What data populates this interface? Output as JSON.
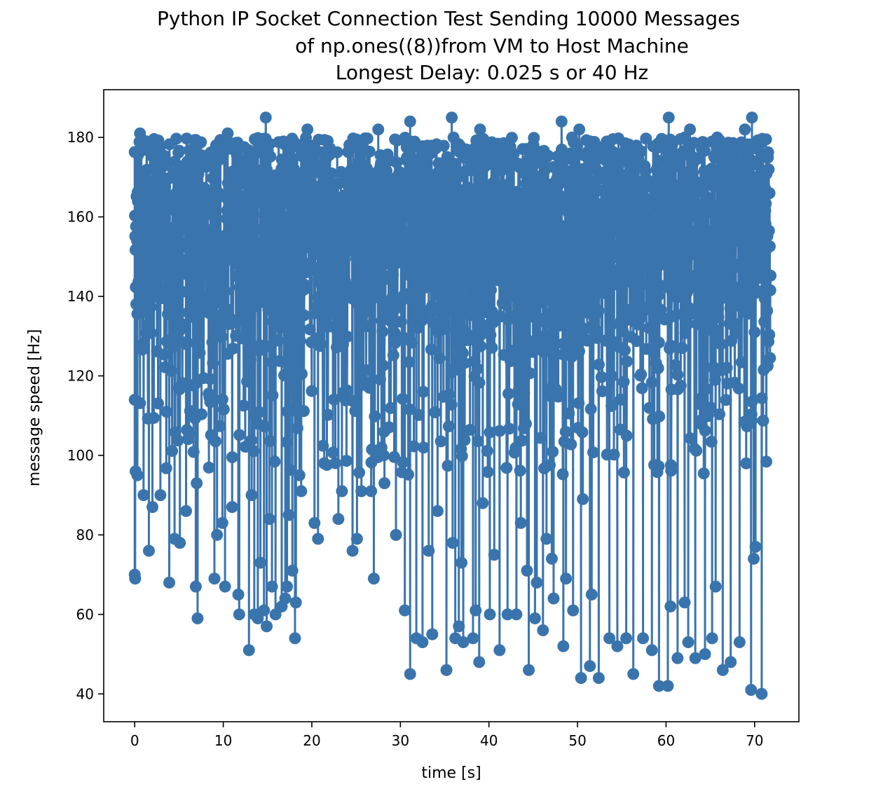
{
  "chart_data": {
    "type": "line",
    "title_lines": [
      "Python IP Socket Connection Test Sending 10000 Messages",
      "of np.ones((8))from VM to Host Machine",
      "Longest Delay: 0.025 s or 40 Hz"
    ],
    "xlabel": "time [s]",
    "ylabel": "message speed [Hz]",
    "xlim": [
      -3.5,
      75
    ],
    "ylim": [
      33,
      192
    ],
    "xticks": [
      0,
      10,
      20,
      30,
      40,
      50,
      60,
      70
    ],
    "yticks": [
      40,
      60,
      80,
      100,
      120,
      140,
      160,
      180
    ],
    "grid": false,
    "legend": "none",
    "marker": "circle",
    "series": [
      {
        "color": "#3a74ad",
        "t_range": [
          0,
          71.8
        ],
        "count": 10000,
        "typical_range": [
          125,
          180
        ],
        "min": 40,
        "max": 185,
        "low_points": [
          {
            "x": 0.0,
            "y": 70
          },
          {
            "x": 0.05,
            "y": 69
          },
          {
            "x": 0.0,
            "y": 114
          },
          {
            "x": 0.1,
            "y": 96
          },
          {
            "x": 0.3,
            "y": 95
          },
          {
            "x": 1.0,
            "y": 90
          },
          {
            "x": 1.6,
            "y": 76
          },
          {
            "x": 2.0,
            "y": 87
          },
          {
            "x": 2.9,
            "y": 90
          },
          {
            "x": 3.9,
            "y": 68
          },
          {
            "x": 4.5,
            "y": 79
          },
          {
            "x": 5.1,
            "y": 78
          },
          {
            "x": 5.8,
            "y": 86
          },
          {
            "x": 6.9,
            "y": 67
          },
          {
            "x": 7.1,
            "y": 59
          },
          {
            "x": 7.0,
            "y": 93
          },
          {
            "x": 9.0,
            "y": 69
          },
          {
            "x": 9.3,
            "y": 80
          },
          {
            "x": 9.9,
            "y": 83
          },
          {
            "x": 10.2,
            "y": 67
          },
          {
            "x": 11.0,
            "y": 87
          },
          {
            "x": 11.7,
            "y": 65
          },
          {
            "x": 11.8,
            "y": 60
          },
          {
            "x": 12.9,
            "y": 51
          },
          {
            "x": 13.2,
            "y": 90
          },
          {
            "x": 13.5,
            "y": 60
          },
          {
            "x": 13.9,
            "y": 59
          },
          {
            "x": 14.2,
            "y": 73
          },
          {
            "x": 14.6,
            "y": 61
          },
          {
            "x": 14.9,
            "y": 57
          },
          {
            "x": 15.2,
            "y": 84
          },
          {
            "x": 15.5,
            "y": 67
          },
          {
            "x": 15.9,
            "y": 60
          },
          {
            "x": 16.6,
            "y": 62
          },
          {
            "x": 17.0,
            "y": 64
          },
          {
            "x": 17.2,
            "y": 67
          },
          {
            "x": 17.4,
            "y": 85
          },
          {
            "x": 17.8,
            "y": 71
          },
          {
            "x": 18.2,
            "y": 63
          },
          {
            "x": 18.1,
            "y": 54
          },
          {
            "x": 18.6,
            "y": 95
          },
          {
            "x": 18.8,
            "y": 91
          },
          {
            "x": 20.3,
            "y": 83
          },
          {
            "x": 20.7,
            "y": 79
          },
          {
            "x": 21.4,
            "y": 98
          },
          {
            "x": 23.0,
            "y": 84
          },
          {
            "x": 23.4,
            "y": 91
          },
          {
            "x": 24.6,
            "y": 76
          },
          {
            "x": 25.1,
            "y": 79
          },
          {
            "x": 25.6,
            "y": 91
          },
          {
            "x": 26.7,
            "y": 91
          },
          {
            "x": 27.0,
            "y": 69
          },
          {
            "x": 28.2,
            "y": 93
          },
          {
            "x": 29.5,
            "y": 80
          },
          {
            "x": 30.5,
            "y": 61
          },
          {
            "x": 31.1,
            "y": 45
          },
          {
            "x": 31.8,
            "y": 54
          },
          {
            "x": 32.5,
            "y": 53
          },
          {
            "x": 33.2,
            "y": 76
          },
          {
            "x": 33.6,
            "y": 55
          },
          {
            "x": 34.2,
            "y": 86
          },
          {
            "x": 35.2,
            "y": 46
          },
          {
            "x": 35.9,
            "y": 78
          },
          {
            "x": 36.2,
            "y": 54
          },
          {
            "x": 36.6,
            "y": 57
          },
          {
            "x": 36.9,
            "y": 73
          },
          {
            "x": 37.1,
            "y": 53
          },
          {
            "x": 38.2,
            "y": 54
          },
          {
            "x": 38.5,
            "y": 61
          },
          {
            "x": 38.9,
            "y": 48
          },
          {
            "x": 39.3,
            "y": 88
          },
          {
            "x": 40.1,
            "y": 60
          },
          {
            "x": 40.6,
            "y": 75
          },
          {
            "x": 41.2,
            "y": 51
          },
          {
            "x": 42.1,
            "y": 60
          },
          {
            "x": 43.1,
            "y": 60
          },
          {
            "x": 43.6,
            "y": 83
          },
          {
            "x": 44.3,
            "y": 71
          },
          {
            "x": 44.5,
            "y": 46
          },
          {
            "x": 45.2,
            "y": 59
          },
          {
            "x": 45.4,
            "y": 68
          },
          {
            "x": 46.1,
            "y": 56
          },
          {
            "x": 46.5,
            "y": 79
          },
          {
            "x": 47.1,
            "y": 74
          },
          {
            "x": 47.3,
            "y": 64
          },
          {
            "x": 48.4,
            "y": 52
          },
          {
            "x": 48.7,
            "y": 69
          },
          {
            "x": 49.5,
            "y": 61
          },
          {
            "x": 50.4,
            "y": 44
          },
          {
            "x": 50.6,
            "y": 89
          },
          {
            "x": 51.4,
            "y": 47
          },
          {
            "x": 51.6,
            "y": 65
          },
          {
            "x": 52.4,
            "y": 44
          },
          {
            "x": 53.6,
            "y": 54
          },
          {
            "x": 54.5,
            "y": 52
          },
          {
            "x": 55.5,
            "y": 54
          },
          {
            "x": 56.3,
            "y": 45
          },
          {
            "x": 57.4,
            "y": 54
          },
          {
            "x": 58.4,
            "y": 51
          },
          {
            "x": 59.2,
            "y": 42
          },
          {
            "x": 60.2,
            "y": 42
          },
          {
            "x": 60.5,
            "y": 62
          },
          {
            "x": 61.3,
            "y": 49
          },
          {
            "x": 62.1,
            "y": 63
          },
          {
            "x": 62.5,
            "y": 53
          },
          {
            "x": 63.3,
            "y": 49
          },
          {
            "x": 64.4,
            "y": 50
          },
          {
            "x": 65.2,
            "y": 54
          },
          {
            "x": 65.6,
            "y": 67
          },
          {
            "x": 66.4,
            "y": 46
          },
          {
            "x": 67.3,
            "y": 48
          },
          {
            "x": 68.3,
            "y": 53
          },
          {
            "x": 69.6,
            "y": 41
          },
          {
            "x": 69.9,
            "y": 74
          },
          {
            "x": 70.1,
            "y": 77
          },
          {
            "x": 70.8,
            "y": 40
          }
        ],
        "high_points": [
          {
            "x": 14.8,
            "y": 185
          },
          {
            "x": 31.1,
            "y": 184
          },
          {
            "x": 35.8,
            "y": 185
          },
          {
            "x": 48.2,
            "y": 184
          },
          {
            "x": 60.3,
            "y": 185
          },
          {
            "x": 69.7,
            "y": 185
          },
          {
            "x": 0.6,
            "y": 181
          },
          {
            "x": 10.5,
            "y": 181
          },
          {
            "x": 19.5,
            "y": 182
          },
          {
            "x": 27.5,
            "y": 182
          },
          {
            "x": 39.0,
            "y": 182
          },
          {
            "x": 50.2,
            "y": 182
          },
          {
            "x": 62.7,
            "y": 182
          },
          {
            "x": 68.9,
            "y": 182
          }
        ]
      }
    ]
  }
}
